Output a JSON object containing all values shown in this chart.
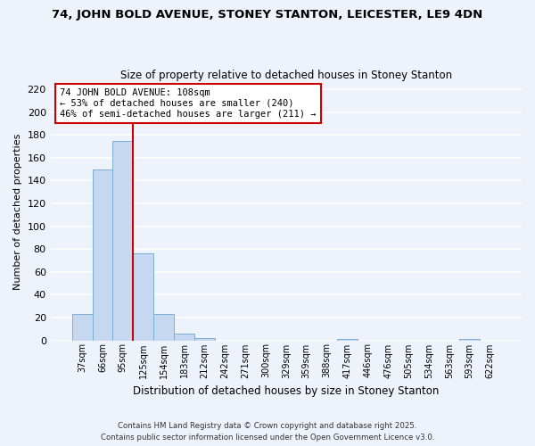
{
  "title": "74, JOHN BOLD AVENUE, STONEY STANTON, LEICESTER, LE9 4DN",
  "subtitle": "Size of property relative to detached houses in Stoney Stanton",
  "xlabel": "Distribution of detached houses by size in Stoney Stanton",
  "ylabel": "Number of detached properties",
  "bin_labels": [
    "37sqm",
    "66sqm",
    "95sqm",
    "125sqm",
    "154sqm",
    "183sqm",
    "212sqm",
    "242sqm",
    "271sqm",
    "300sqm",
    "329sqm",
    "359sqm",
    "388sqm",
    "417sqm",
    "446sqm",
    "476sqm",
    "505sqm",
    "534sqm",
    "563sqm",
    "593sqm",
    "622sqm"
  ],
  "bar_heights": [
    23,
    150,
    175,
    76,
    23,
    6,
    2,
    0,
    0,
    0,
    0,
    0,
    0,
    1,
    0,
    0,
    0,
    0,
    0,
    1,
    0
  ],
  "bar_color": "#c5d8f0",
  "bar_edge_color": "#7aafd4",
  "vline_x_index": 2.5,
  "vline_color": "#cc0000",
  "annotation_line1": "74 JOHN BOLD AVENUE: 108sqm",
  "annotation_line2": "← 53% of detached houses are smaller (240)",
  "annotation_line3": "46% of semi-detached houses are larger (211) →",
  "ylim": [
    0,
    225
  ],
  "yticks": [
    0,
    20,
    40,
    60,
    80,
    100,
    120,
    140,
    160,
    180,
    200,
    220
  ],
  "background_color": "#eef2fb",
  "grid_color": "#ffffff",
  "footer_line1": "Contains HM Land Registry data © Crown copyright and database right 2025.",
  "footer_line2": "Contains public sector information licensed under the Open Government Licence v3.0."
}
